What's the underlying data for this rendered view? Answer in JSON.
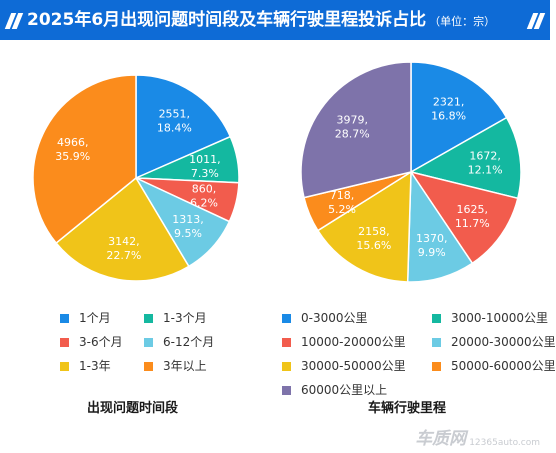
{
  "header": {
    "title": "2025年6月出现问题时间段及车辆行驶里程投诉占比",
    "unit": "（单位：宗）"
  },
  "colors": {
    "header_bg": "#0e6bd6",
    "blue": "#1a8ae6",
    "teal": "#14b8a0",
    "red": "#f25c4d",
    "light_blue": "#6ccbe4",
    "yellow": "#f0c419",
    "orange": "#fb8c1c",
    "purple": "#7e73aa"
  },
  "chart_data": [
    {
      "type": "pie",
      "title": "出现问题时间段",
      "legend_position": "bottom",
      "slices": [
        {
          "label": "1个月",
          "value": 2551,
          "percent": "18.4%",
          "color": "#1a8ae6"
        },
        {
          "label": "1-3个月",
          "value": 1011,
          "percent": "7.3%",
          "color": "#14b8a0"
        },
        {
          "label": "3-6个月",
          "value": 860,
          "percent": "6.2%",
          "color": "#f25c4d"
        },
        {
          "label": "6-12个月",
          "value": 1313,
          "percent": "9.5%",
          "color": "#6ccbe4"
        },
        {
          "label": "1-3年",
          "value": 3142,
          "percent": "22.7%",
          "color": "#f0c419"
        },
        {
          "label": "3年以上",
          "value": 4966,
          "percent": "35.9%",
          "color": "#fb8c1c"
        }
      ]
    },
    {
      "type": "pie",
      "title": "车辆行驶里程",
      "legend_position": "bottom",
      "slices": [
        {
          "label": "0-3000公里",
          "value": 2321,
          "percent": "16.8%",
          "color": "#1a8ae6"
        },
        {
          "label": "3000-10000公里",
          "value": 1672,
          "percent": "12.1%",
          "color": "#14b8a0"
        },
        {
          "label": "10000-20000公里",
          "value": 1625,
          "percent": "11.7%",
          "color": "#f25c4d"
        },
        {
          "label": "20000-30000公里",
          "value": 1370,
          "percent": "9.9%",
          "color": "#6ccbe4"
        },
        {
          "label": "30000-50000公里",
          "value": 2158,
          "percent": "15.6%",
          "color": "#f0c419"
        },
        {
          "label": "50000-60000公里",
          "value": 718,
          "percent": "5.2%",
          "color": "#fb8c1c"
        },
        {
          "label": "60000公里以上",
          "value": 3979,
          "percent": "28.7%",
          "color": "#7e73aa"
        }
      ]
    }
  ],
  "watermark": {
    "brand": "车质网",
    "site": "12365auto.com"
  }
}
